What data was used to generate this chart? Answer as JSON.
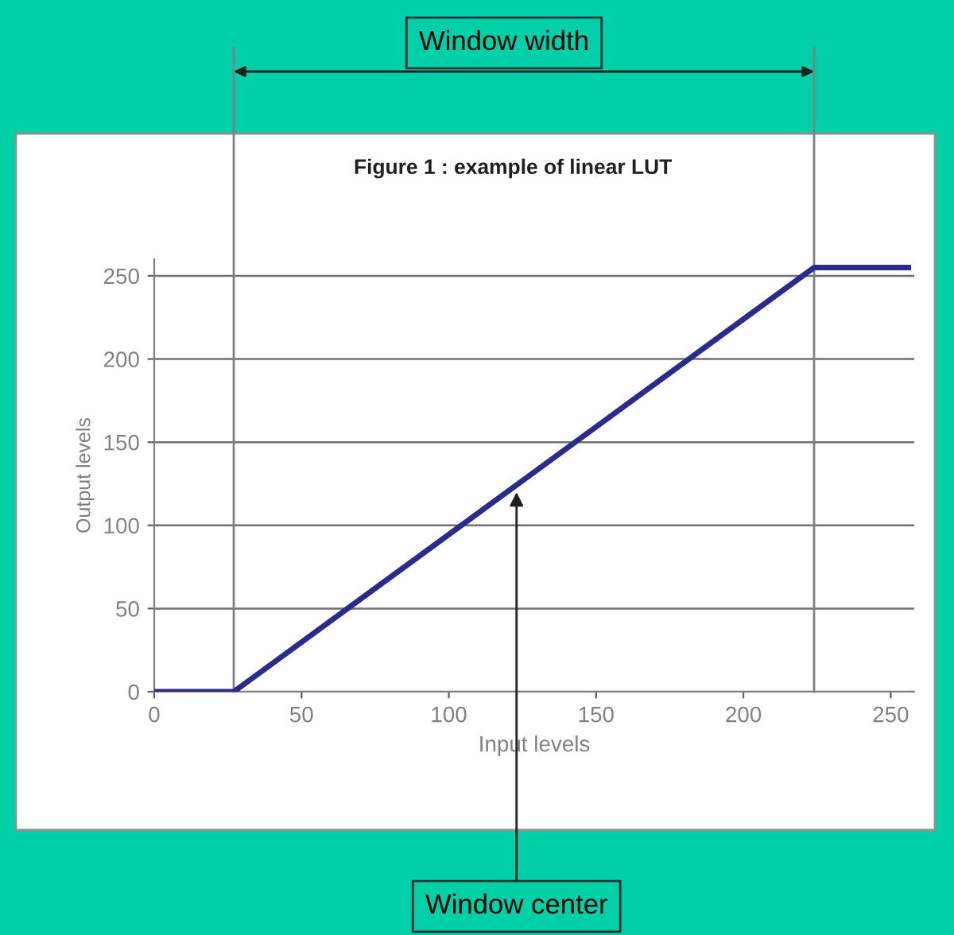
{
  "chart_data": {
    "type": "line",
    "title": "Figure 1 : example of linear LUT",
    "xlabel": "Input levels",
    "ylabel": "Output levels",
    "x": [
      0,
      27,
      224,
      256
    ],
    "series": [
      {
        "color": "#2b2b8c",
        "values": [
          0,
          0,
          255,
          255
        ]
      }
    ],
    "xlim": [
      0,
      258
    ],
    "ylim": [
      0,
      260
    ],
    "xticks": [
      0,
      50,
      100,
      150,
      200,
      250
    ],
    "yticks": [
      0,
      50,
      100,
      150,
      200,
      250
    ],
    "grid": "y",
    "marker": "none",
    "line_style": "solid",
    "ref_lines": [
      {
        "axis": "x",
        "value": 27,
        "color": "#808080"
      },
      {
        "axis": "x",
        "value": 224,
        "color": "#808080"
      }
    ],
    "annotations": [
      "Window width",
      {
        "text": "Window center",
        "x": 123,
        "y": 120
      }
    ]
  }
}
